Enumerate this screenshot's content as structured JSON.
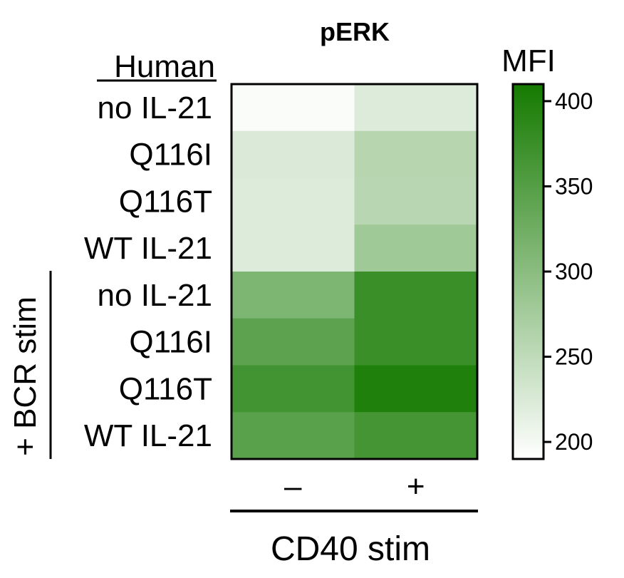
{
  "chart_data": {
    "type": "heatmap",
    "title": "pERK",
    "row_group_label": "Human",
    "side_group_label": "+ BCR stim",
    "rows": [
      "no IL-21",
      "Q116I",
      "Q116T",
      "WT IL-21",
      "no IL-21",
      "Q116I",
      "Q116T",
      "WT IL-21"
    ],
    "columns": [
      "–",
      "+"
    ],
    "xlabel": "CD40 stim",
    "values": [
      [
        195,
        222
      ],
      [
        224,
        258
      ],
      [
        222,
        257
      ],
      [
        222,
        280
      ],
      [
        312,
        375
      ],
      [
        342,
        375
      ],
      [
        368,
        400
      ],
      [
        345,
        365
      ]
    ],
    "colorbar": {
      "label": "MFI",
      "range": [
        190,
        410
      ],
      "ticks": [
        400,
        350,
        300,
        250,
        200
      ],
      "color_low": "#ffffff",
      "color_high": "#157a00"
    }
  }
}
